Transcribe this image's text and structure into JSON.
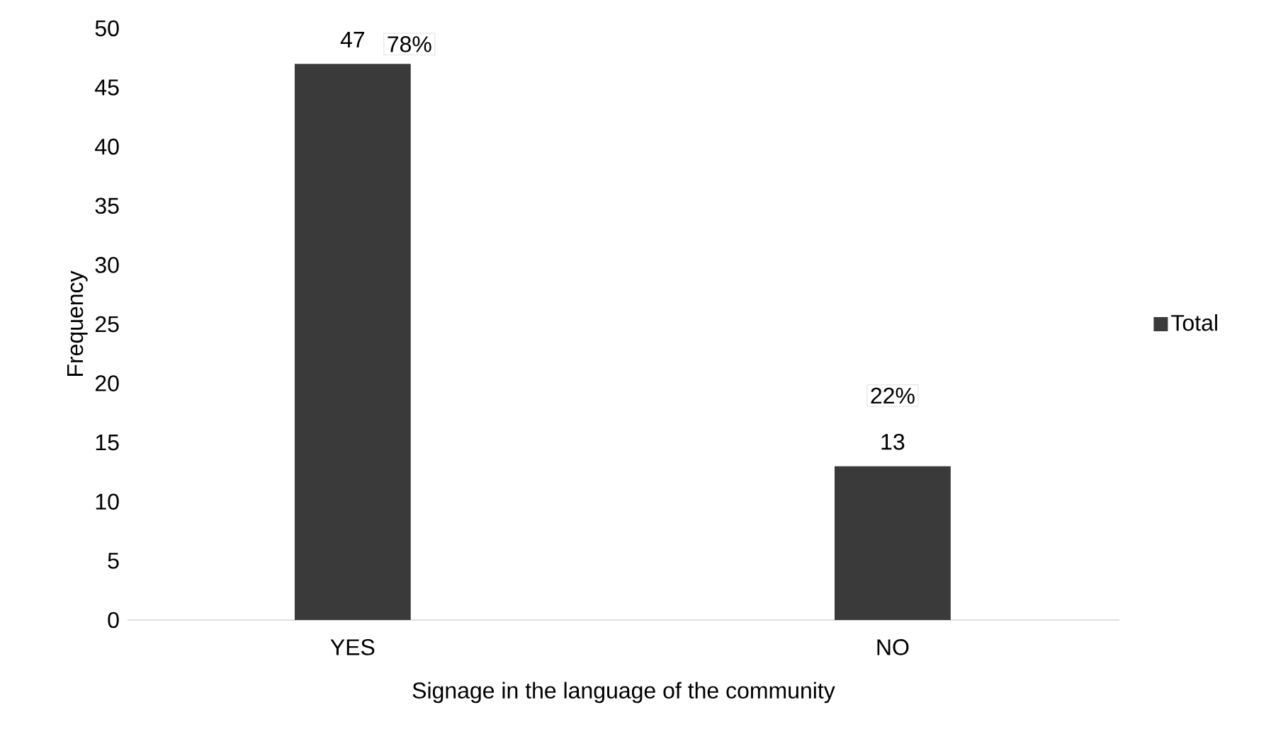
{
  "chart_data": {
    "type": "bar",
    "xlabel": "Signage in the language of the community",
    "ylabel": "Frequency",
    "categories": [
      "YES",
      "NO"
    ],
    "series": [
      {
        "name": "Total",
        "color": "#3a3a3a",
        "values": [
          47,
          13
        ]
      }
    ],
    "data_labels": true,
    "annotations": [
      {
        "text": "78%",
        "x": "YES",
        "y": 47
      },
      {
        "text": "22%",
        "x": "NO",
        "y": 13
      }
    ],
    "ylim": [
      0,
      50
    ],
    "yticks": [
      0,
      5,
      10,
      15,
      20,
      25,
      30,
      35,
      40,
      45,
      50
    ],
    "grid": false,
    "legend": "right"
  }
}
